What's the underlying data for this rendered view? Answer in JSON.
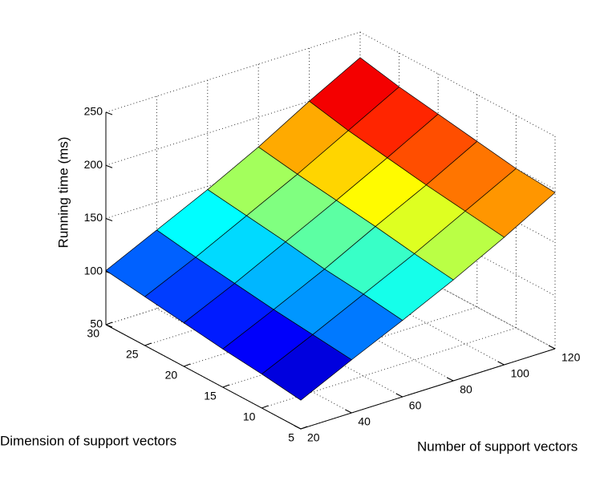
{
  "chart_data": {
    "type": "surface",
    "colormap": "jet",
    "grid": true,
    "xlabel": "Number of support vectors",
    "ylabel": "Dimension of support vectors",
    "zlabel": "Running time (ms)",
    "x": [
      20,
      40,
      60,
      80,
      100,
      120
    ],
    "y": [
      5,
      10,
      15,
      20,
      25,
      30
    ],
    "z": [
      [
        77,
        100,
        122,
        145,
        170,
        197
      ],
      [
        82,
        104,
        127,
        150,
        175,
        200
      ],
      [
        86,
        108,
        131,
        156,
        180,
        206
      ],
      [
        91,
        113,
        137,
        161,
        186,
        212
      ],
      [
        96,
        118,
        142,
        166,
        192,
        218
      ],
      [
        101,
        124,
        147,
        172,
        200,
        226
      ]
    ],
    "xlim": [
      20,
      120
    ],
    "ylim": [
      5,
      30
    ],
    "zlim": [
      50,
      250
    ],
    "xticks": [
      20,
      40,
      60,
      80,
      100,
      120
    ],
    "yticks": [
      5,
      10,
      15,
      20,
      25,
      30
    ],
    "zticks": [
      50,
      100,
      150,
      200,
      250
    ]
  }
}
